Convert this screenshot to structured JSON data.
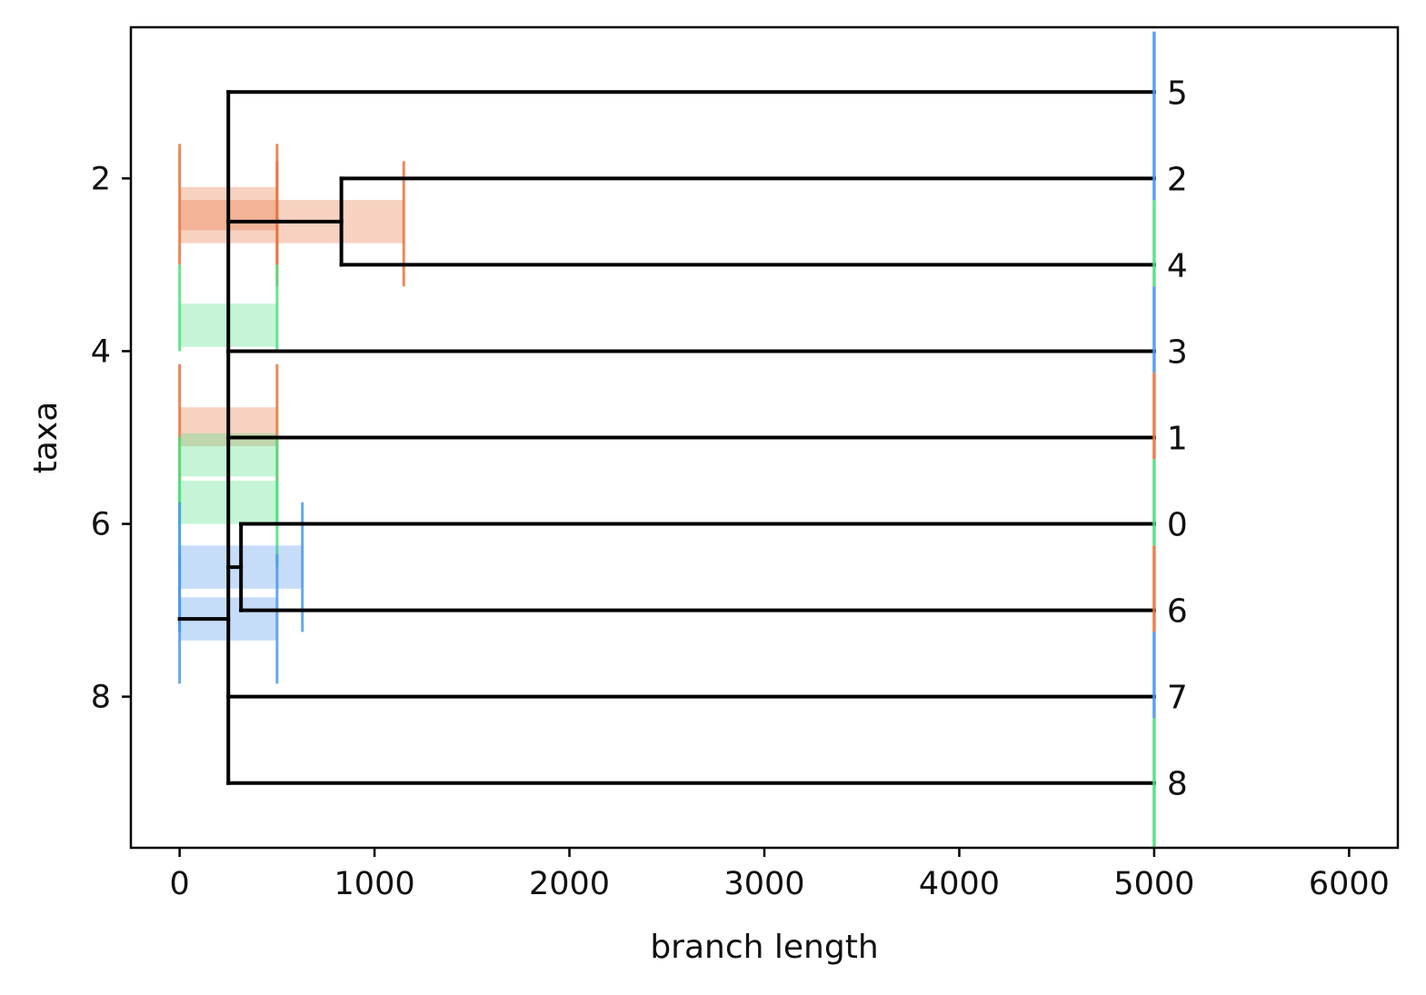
{
  "chart_data": {
    "type": "dendrogram",
    "xlabel": "branch length",
    "ylabel": "taxa",
    "xlim": [
      -250,
      6250
    ],
    "ylim": [
      9.75,
      0.25
    ],
    "xticks": [
      0,
      1000,
      2000,
      3000,
      4000,
      5000,
      6000
    ],
    "yticks": [
      2,
      4,
      6,
      8
    ],
    "grid": false,
    "colors": {
      "orange": "#e8733e",
      "green": "#4be07e",
      "blue": "#4d96ef",
      "branch": "#000000"
    },
    "leaves": [
      {
        "label": "5",
        "y": 1,
        "marker_color": "blue"
      },
      {
        "label": "2",
        "y": 2,
        "marker_color": "blue"
      },
      {
        "label": "4",
        "y": 3,
        "marker_color": "green"
      },
      {
        "label": "3",
        "y": 4,
        "marker_color": "blue"
      },
      {
        "label": "1",
        "y": 5,
        "marker_color": "orange"
      },
      {
        "label": "0",
        "y": 6,
        "marker_color": "green"
      },
      {
        "label": "6",
        "y": 7,
        "marker_color": "orange"
      },
      {
        "label": "7",
        "y": 8,
        "marker_color": "blue"
      },
      {
        "label": "8",
        "y": 9,
        "marker_color": "green"
      }
    ],
    "leaf_x": 5000,
    "branches": [
      {
        "x1": 250,
        "y1": 1,
        "x2": 5000,
        "y2": 1
      },
      {
        "x1": 830,
        "y1": 2,
        "x2": 5000,
        "y2": 2
      },
      {
        "x1": 830,
        "y1": 3,
        "x2": 5000,
        "y2": 3
      },
      {
        "x1": 830,
        "y1": 2,
        "x2": 830,
        "y2": 3
      },
      {
        "x1": 250,
        "y1": 2.5,
        "x2": 830,
        "y2": 2.5
      },
      {
        "x1": 250,
        "y1": 4,
        "x2": 5000,
        "y2": 4
      },
      {
        "x1": 250,
        "y1": 5,
        "x2": 5000,
        "y2": 5
      },
      {
        "x1": 315,
        "y1": 6,
        "x2": 5000,
        "y2": 6
      },
      {
        "x1": 315,
        "y1": 7,
        "x2": 5000,
        "y2": 7
      },
      {
        "x1": 315,
        "y1": 6,
        "x2": 315,
        "y2": 7
      },
      {
        "x1": 250,
        "y1": 6.5,
        "x2": 315,
        "y2": 6.5
      },
      {
        "x1": 250,
        "y1": 8,
        "x2": 5000,
        "y2": 8
      },
      {
        "x1": 250,
        "y1": 9,
        "x2": 5000,
        "y2": 9
      },
      {
        "x1": 250,
        "y1": 1,
        "x2": 250,
        "y2": 9
      },
      {
        "x1": 0,
        "y1": 7.1,
        "x2": 250,
        "y2": 7.1
      }
    ],
    "intervals": [
      {
        "color": "orange",
        "x1": 0,
        "x2": 500,
        "y1": 2.1,
        "y2": 2.6,
        "marks": [
          0,
          500
        ],
        "mark_y": [
          1.6,
          3.0
        ]
      },
      {
        "color": "orange",
        "x1": 0,
        "x2": 1150,
        "y1": 2.25,
        "y2": 2.75,
        "marks": [
          500,
          1150
        ],
        "mark_y": [
          1.8,
          3.25
        ]
      },
      {
        "color": "green",
        "x1": 0,
        "x2": 500,
        "y1": 3.45,
        "y2": 3.95,
        "marks": [
          0,
          500
        ],
        "mark_y": [
          3.0,
          4.0
        ]
      },
      {
        "color": "orange",
        "x1": 0,
        "x2": 500,
        "y1": 4.65,
        "y2": 5.1,
        "marks": [
          0,
          500
        ],
        "mark_y": [
          4.15,
          5.5
        ]
      },
      {
        "color": "green",
        "x1": 0,
        "x2": 500,
        "y1": 4.95,
        "y2": 5.45,
        "marks": [
          0,
          500
        ],
        "mark_y": [
          5.0,
          6.0
        ]
      },
      {
        "color": "green",
        "x1": 0,
        "x2": 500,
        "y1": 5.5,
        "y2": 6.0,
        "marks": [
          0,
          500
        ],
        "mark_y": [
          5.5,
          6.5
        ]
      },
      {
        "color": "blue",
        "x1": 0,
        "x2": 630,
        "y1": 6.25,
        "y2": 6.75,
        "marks": [
          0,
          630
        ],
        "mark_y": [
          5.75,
          7.25
        ]
      },
      {
        "color": "blue",
        "x1": 0,
        "x2": 500,
        "y1": 6.85,
        "y2": 7.35,
        "marks": [
          0,
          500
        ],
        "mark_y": [
          6.35,
          7.85
        ]
      }
    ],
    "leaf_marker_segments": [
      {
        "color": "blue",
        "y1": 0.3,
        "y2": 1.75
      },
      {
        "color": "blue",
        "y1": 1.75,
        "y2": 2.25
      },
      {
        "color": "green",
        "y1": 2.25,
        "y2": 3.25
      },
      {
        "color": "blue",
        "y1": 3.25,
        "y2": 4.25
      },
      {
        "color": "orange",
        "y1": 4.25,
        "y2": 5.25
      },
      {
        "color": "green",
        "y1": 5.25,
        "y2": 6.25
      },
      {
        "color": "orange",
        "y1": 6.25,
        "y2": 7.25
      },
      {
        "color": "blue",
        "y1": 7.25,
        "y2": 8.25
      },
      {
        "color": "green",
        "y1": 8.25,
        "y2": 9.75
      }
    ]
  }
}
